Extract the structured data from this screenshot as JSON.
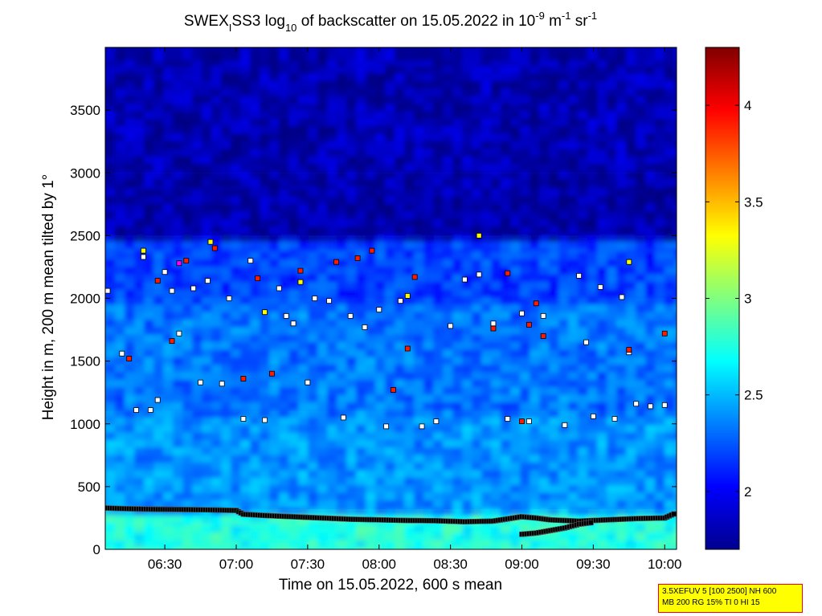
{
  "chart_data": {
    "type": "heatmap",
    "title": "SWEX_I SS3 log10 of backscatter on 15.05.2022 in 10^-9 m^-1 sr^-1",
    "title_parts": {
      "a": "SWEX",
      "a_sub": "I",
      "b": "SS3 log",
      "b_sub": "10",
      "c": " of backscatter on 15.05.2022 in 10",
      "c_sup": "-9",
      "d": " m",
      "d_sup": "-1",
      "e": " sr",
      "e_sup": "-1"
    },
    "xlabel": "Time on 15.05.2022, 600 s mean",
    "ylabel": "Height in m, 200 m mean tilted by 1°",
    "x_range_hours": [
      6.083,
      10.083
    ],
    "x_ticks": [
      {
        "value": 6.5,
        "label": "06:30"
      },
      {
        "value": 7.0,
        "label": "07:00"
      },
      {
        "value": 7.5,
        "label": "07:30"
      },
      {
        "value": 8.0,
        "label": "08:00"
      },
      {
        "value": 8.5,
        "label": "08:30"
      },
      {
        "value": 9.0,
        "label": "09:00"
      },
      {
        "value": 9.5,
        "label": "09:30"
      },
      {
        "value": 10.0,
        "label": "10:00"
      }
    ],
    "ylim": [
      0,
      4000
    ],
    "y_ticks": [
      0,
      500,
      1000,
      1500,
      2000,
      2500,
      3000,
      3500
    ],
    "colorbar": {
      "range": [
        1.7,
        4.3
      ],
      "ticks": [
        2,
        2.5,
        3,
        3.5,
        4
      ],
      "colormap": "jet"
    },
    "layers": [
      {
        "from": 0,
        "to": 320,
        "value": 2.75
      },
      {
        "from": 320,
        "to": 1100,
        "value": 2.4
      },
      {
        "from": 1100,
        "to": 2000,
        "value": 2.32
      },
      {
        "from": 2000,
        "to": 2500,
        "value": 2.18
      },
      {
        "from": 2500,
        "to": 3000,
        "value": 1.8
      },
      {
        "from": 3000,
        "to": 4000,
        "value": 1.82
      }
    ],
    "markers": {
      "surface_layer_black": [
        [
          6.08,
          330
        ],
        [
          6.2,
          325
        ],
        [
          6.4,
          320
        ],
        [
          6.6,
          318
        ],
        [
          6.8,
          315
        ],
        [
          7.0,
          310
        ],
        [
          7.05,
          280
        ],
        [
          7.2,
          270
        ],
        [
          7.4,
          260
        ],
        [
          7.6,
          250
        ],
        [
          7.8,
          240
        ],
        [
          8.0,
          235
        ],
        [
          8.2,
          230
        ],
        [
          8.4,
          228
        ],
        [
          8.6,
          220
        ],
        [
          8.8,
          225
        ],
        [
          9.0,
          260
        ],
        [
          9.1,
          250
        ],
        [
          9.2,
          235
        ],
        [
          9.4,
          225
        ],
        [
          9.6,
          235
        ],
        [
          9.8,
          245
        ],
        [
          10.0,
          250
        ],
        [
          10.08,
          290
        ]
      ],
      "lower_branch_black": [
        [
          9.0,
          120
        ],
        [
          9.1,
          130
        ],
        [
          9.2,
          150
        ],
        [
          9.3,
          170
        ],
        [
          9.4,
          200
        ],
        [
          9.5,
          215
        ]
      ],
      "white": [
        [
          6.1,
          2060
        ],
        [
          6.2,
          1560
        ],
        [
          6.3,
          1110
        ],
        [
          6.35,
          2330
        ],
        [
          6.4,
          1110
        ],
        [
          6.45,
          1190
        ],
        [
          6.5,
          2210
        ],
        [
          6.55,
          2060
        ],
        [
          6.6,
          1720
        ],
        [
          6.7,
          2080
        ],
        [
          6.75,
          1330
        ],
        [
          6.8,
          2140
        ],
        [
          6.9,
          1320
        ],
        [
          6.95,
          2000
        ],
        [
          7.05,
          1040
        ],
        [
          7.1,
          2300
        ],
        [
          7.2,
          1030
        ],
        [
          7.3,
          2080
        ],
        [
          7.35,
          1860
        ],
        [
          7.4,
          1800
        ],
        [
          7.5,
          1330
        ],
        [
          7.55,
          2000
        ],
        [
          7.65,
          1980
        ],
        [
          7.75,
          1050
        ],
        [
          7.8,
          1860
        ],
        [
          7.9,
          1770
        ],
        [
          8.0,
          1910
        ],
        [
          8.05,
          980
        ],
        [
          8.15,
          1980
        ],
        [
          8.3,
          980
        ],
        [
          8.4,
          1020
        ],
        [
          8.5,
          1780
        ],
        [
          8.6,
          2150
        ],
        [
          8.7,
          2190
        ],
        [
          8.8,
          1800
        ],
        [
          8.9,
          1040
        ],
        [
          9.0,
          1880
        ],
        [
          9.05,
          1020
        ],
        [
          9.15,
          1860
        ],
        [
          9.3,
          990
        ],
        [
          9.4,
          2180
        ],
        [
          9.45,
          1650
        ],
        [
          9.5,
          1060
        ],
        [
          9.55,
          2090
        ],
        [
          9.65,
          1040
        ],
        [
          9.7,
          2010
        ],
        [
          9.75,
          1570
        ],
        [
          9.8,
          1160
        ],
        [
          9.9,
          1140
        ],
        [
          10.0,
          1150
        ]
      ],
      "red": [
        [
          6.25,
          1520
        ],
        [
          6.45,
          2140
        ],
        [
          6.55,
          1660
        ],
        [
          6.65,
          2300
        ],
        [
          6.85,
          2400
        ],
        [
          7.05,
          1360
        ],
        [
          7.15,
          2160
        ],
        [
          7.25,
          1400
        ],
        [
          7.45,
          2220
        ],
        [
          7.7,
          2290
        ],
        [
          7.85,
          2320
        ],
        [
          7.95,
          2380
        ],
        [
          8.1,
          1270
        ],
        [
          8.2,
          1600
        ],
        [
          8.25,
          2170
        ],
        [
          8.8,
          1760
        ],
        [
          8.9,
          2200
        ],
        [
          9.0,
          1020
        ],
        [
          9.05,
          1790
        ],
        [
          9.1,
          1960
        ],
        [
          9.15,
          1700
        ],
        [
          9.75,
          1590
        ],
        [
          10.0,
          1720
        ]
      ],
      "yellow": [
        [
          6.35,
          2380
        ],
        [
          6.82,
          2450
        ],
        [
          7.2,
          1890
        ],
        [
          7.45,
          2130
        ],
        [
          8.2,
          2020
        ],
        [
          8.7,
          2500
        ],
        [
          9.75,
          2290
        ]
      ],
      "magenta": [
        [
          6.6,
          2280
        ]
      ]
    }
  },
  "info_box": {
    "line1": "3.5XEFUV 5 [100 2500] NH 600",
    "line2": "MB 200 RG 15% TI 0 HI 15"
  }
}
